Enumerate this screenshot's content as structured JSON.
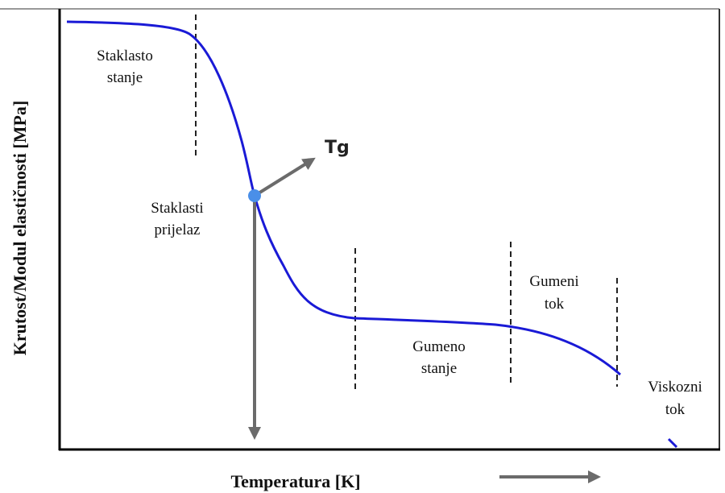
{
  "y_axis_label": "Krutost/Modul elastičnosti [MPa]",
  "x_axis_label": "Temperatura [K]",
  "marker_label": "Tg",
  "regions": [
    {
      "lines": [
        "Staklasto",
        "stanje"
      ]
    },
    {
      "lines": [
        "Staklasti",
        "prijelaz"
      ]
    },
    {
      "lines": [
        "Gumeno",
        "stanje"
      ]
    },
    {
      "lines": [
        "Gumeni",
        "tok"
      ]
    },
    {
      "lines": [
        "Viskozni",
        "tok"
      ]
    }
  ]
}
